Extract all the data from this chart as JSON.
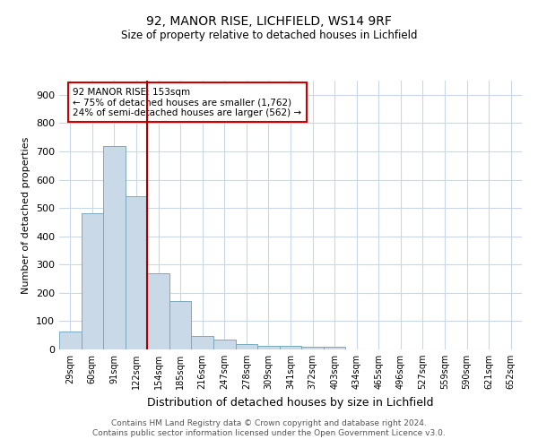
{
  "title1": "92, MANOR RISE, LICHFIELD, WS14 9RF",
  "title2": "Size of property relative to detached houses in Lichfield",
  "xlabel": "Distribution of detached houses by size in Lichfield",
  "ylabel": "Number of detached properties",
  "categories": [
    "29sqm",
    "60sqm",
    "91sqm",
    "122sqm",
    "154sqm",
    "185sqm",
    "216sqm",
    "247sqm",
    "278sqm",
    "309sqm",
    "341sqm",
    "372sqm",
    "403sqm",
    "434sqm",
    "465sqm",
    "496sqm",
    "527sqm",
    "559sqm",
    "590sqm",
    "621sqm",
    "652sqm"
  ],
  "values": [
    62,
    480,
    720,
    540,
    270,
    170,
    47,
    35,
    20,
    14,
    13,
    8,
    8,
    0,
    0,
    0,
    0,
    0,
    0,
    0,
    0
  ],
  "bar_color": "#c9d9e8",
  "bar_edge_color": "#7aaabf",
  "vline_color": "#aa0000",
  "annotation_text": "92 MANOR RISE: 153sqm\n← 75% of detached houses are smaller (1,762)\n24% of semi-detached houses are larger (562) →",
  "annotation_box_color": "#cc0000",
  "ylim": [
    0,
    950
  ],
  "yticks": [
    0,
    100,
    200,
    300,
    400,
    500,
    600,
    700,
    800,
    900
  ],
  "footer": "Contains HM Land Registry data © Crown copyright and database right 2024.\nContains public sector information licensed under the Open Government Licence v3.0.",
  "bg_color": "#ffffff",
  "grid_color": "#c8d8e8"
}
